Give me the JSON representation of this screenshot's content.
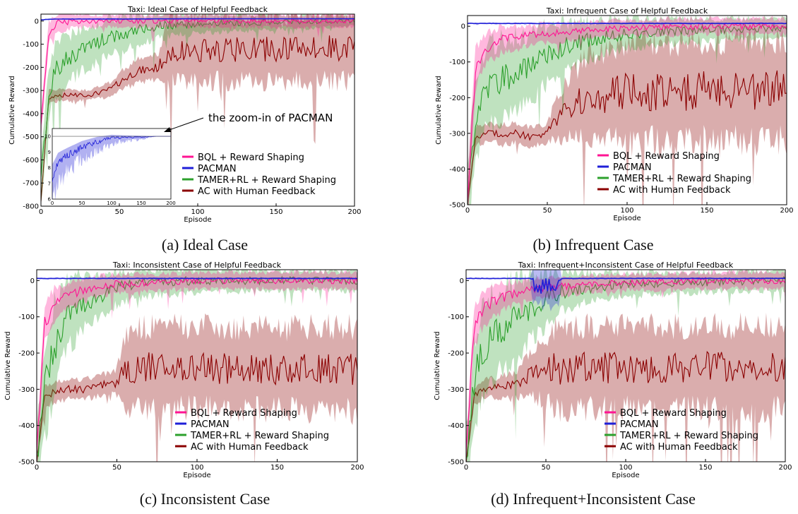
{
  "legend_entries": [
    "BQL + Reward Shaping",
    "PACMAN",
    "TAMER+RL + Reward Shaping",
    "AC with Human Feedback"
  ],
  "colors": {
    "bql": "#ff1493",
    "pacman": "#1f1fd8",
    "tamer": "#2ca02c",
    "ac": "#8b0000"
  },
  "captions": [
    "(a) Ideal Case",
    "(b) Infrequent Case",
    "(c) Inconsistent Case",
    "(d) Infrequent+Inconsistent Case"
  ],
  "annotation": "the zoom-in of PACMAN",
  "chart_data": [
    {
      "type": "line",
      "title": "Taxi: Ideal Case of Helpful Feedback",
      "xlabel": "Episode",
      "ylabel": "Cumulative Reward",
      "xlim": [
        0,
        200
      ],
      "ylim": [
        -800,
        30
      ],
      "xticks": [
        "0",
        "50",
        "100",
        "150",
        "200"
      ],
      "yticks": [
        "0",
        "-100",
        "-200",
        "-300",
        "-400",
        "-500",
        "-600",
        "-700",
        "-800"
      ],
      "legend_position": "lower-right",
      "series": [
        {
          "name": "BQL + Reward Shaping",
          "x": [
            0,
            5,
            10,
            20,
            30,
            40,
            50,
            75,
            100,
            150,
            200
          ],
          "y": [
            -450,
            -50,
            -10,
            0,
            0,
            0,
            0,
            0,
            0,
            0,
            0
          ],
          "band": [
            60,
            50,
            45,
            35,
            30,
            30,
            30,
            30,
            30,
            30,
            30
          ]
        },
        {
          "name": "PACMAN",
          "x": [
            0,
            5,
            10,
            50,
            100,
            150,
            200
          ],
          "y": [
            5,
            8,
            9,
            9,
            10,
            10,
            10
          ],
          "band": [
            3,
            2,
            1,
            1,
            0,
            0,
            0
          ]
        },
        {
          "name": "TAMER+RL + Reward Shaping",
          "x": [
            0,
            5,
            10,
            20,
            30,
            40,
            50,
            60,
            75,
            100,
            150,
            200
          ],
          "y": [
            -700,
            -300,
            -200,
            -150,
            -110,
            -80,
            -60,
            -40,
            -20,
            -10,
            -5,
            0
          ],
          "band": [
            100,
            120,
            120,
            110,
            100,
            90,
            80,
            70,
            60,
            45,
            35,
            25
          ]
        },
        {
          "name": "AC with Human Feedback",
          "x": [
            0,
            5,
            10,
            20,
            30,
            40,
            45,
            50,
            60,
            75,
            80,
            100,
            150,
            200
          ],
          "y": [
            -780,
            -330,
            -320,
            -320,
            -320,
            -305,
            -290,
            -265,
            -220,
            -200,
            -140,
            -125,
            -120,
            -115
          ],
          "band": [
            20,
            30,
            30,
            25,
            25,
            30,
            30,
            45,
            55,
            60,
            145,
            150,
            155,
            160
          ]
        }
      ],
      "inset": {
        "series": "PACMAN",
        "xlim": [
          0,
          200
        ],
        "ylim": [
          6,
          10.5
        ],
        "xticks": [
          "0",
          "50",
          "100",
          "150",
          "200"
        ],
        "yticks": [
          "10",
          "9",
          "8",
          "7",
          "6"
        ],
        "x": [
          0,
          10,
          25,
          50,
          75,
          100,
          125,
          150,
          175,
          200
        ],
        "y": [
          7.8,
          8.6,
          9.0,
          9.5,
          9.8,
          10,
          10,
          10,
          10,
          10
        ],
        "band": [
          2,
          1.8,
          1.3,
          1,
          0.8,
          0.5,
          0.3,
          0.2,
          0,
          0
        ]
      }
    },
    {
      "type": "line",
      "title": "Taxi: Infrequent Case of Helpful Feedback",
      "xlabel": "Episode",
      "ylabel": "Cumulative Reward",
      "xlim": [
        0,
        200
      ],
      "ylim": [
        -500,
        30
      ],
      "xticks": [
        "0",
        "50",
        "100",
        "150",
        "200"
      ],
      "yticks": [
        "0",
        "-100",
        "-200",
        "-300",
        "-400",
        "-500"
      ],
      "legend_position": "lower-right",
      "series": [
        {
          "name": "BQL + Reward Shaping",
          "x": [
            0,
            5,
            10,
            20,
            30,
            40,
            50,
            75,
            100,
            150,
            200
          ],
          "y": [
            -480,
            -120,
            -70,
            -40,
            -30,
            -25,
            -20,
            -10,
            -5,
            0,
            0
          ],
          "band": [
            60,
            60,
            50,
            40,
            35,
            30,
            30,
            25,
            25,
            25,
            25
          ]
        },
        {
          "name": "PACMAN",
          "x": [
            0,
            50,
            100,
            150,
            200
          ],
          "y": [
            8,
            8,
            8,
            8,
            8
          ],
          "band": [
            2,
            2,
            2,
            2,
            2
          ]
        },
        {
          "name": "TAMER+RL + Reward Shaping",
          "x": [
            0,
            5,
            10,
            20,
            30,
            40,
            50,
            60,
            75,
            100,
            150,
            200
          ],
          "y": [
            -500,
            -260,
            -190,
            -150,
            -130,
            -110,
            -80,
            -60,
            -40,
            -20,
            -10,
            -5
          ],
          "band": [
            100,
            130,
            130,
            120,
            110,
            100,
            90,
            80,
            60,
            45,
            35,
            30
          ]
        },
        {
          "name": "AC with Human Feedback",
          "x": [
            0,
            5,
            10,
            20,
            30,
            40,
            50,
            55,
            60,
            75,
            100,
            150,
            200
          ],
          "y": [
            -500,
            -310,
            -300,
            -300,
            -300,
            -310,
            -300,
            -260,
            -240,
            -200,
            -185,
            -180,
            -180
          ],
          "band": [
            20,
            30,
            30,
            30,
            30,
            30,
            30,
            60,
            80,
            130,
            155,
            160,
            160
          ]
        }
      ]
    },
    {
      "type": "line",
      "title": "Taxi: Inconsistent Case of Helpful Feedback",
      "xlabel": "Episode",
      "ylabel": "Cumulative Reward",
      "xlim": [
        0,
        200
      ],
      "ylim": [
        -500,
        30
      ],
      "xticks": [
        "0",
        "50",
        "100",
        "150",
        "200"
      ],
      "yticks": [
        "0",
        "-100",
        "-200",
        "-300",
        "-400",
        "-500"
      ],
      "legend_position": "lower-right",
      "series": [
        {
          "name": "BQL + Reward Shaping",
          "x": [
            0,
            5,
            10,
            20,
            30,
            40,
            50,
            75,
            100,
            150,
            200
          ],
          "y": [
            -480,
            -120,
            -70,
            -40,
            -25,
            -15,
            -10,
            -5,
            0,
            0,
            0
          ],
          "band": [
            60,
            60,
            50,
            40,
            35,
            30,
            30,
            25,
            25,
            25,
            25
          ]
        },
        {
          "name": "PACMAN",
          "x": [
            0,
            50,
            100,
            150,
            200
          ],
          "y": [
            6,
            6,
            6,
            6,
            6
          ],
          "band": [
            2,
            2,
            2,
            2,
            2
          ]
        },
        {
          "name": "TAMER+RL + Reward Shaping",
          "x": [
            0,
            5,
            10,
            15,
            20,
            30,
            40,
            50,
            60,
            75,
            100,
            150,
            200
          ],
          "y": [
            -500,
            -300,
            -200,
            -130,
            -90,
            -60,
            -40,
            -20,
            -10,
            -5,
            0,
            0,
            0
          ],
          "band": [
            100,
            140,
            140,
            120,
            100,
            80,
            60,
            50,
            45,
            40,
            35,
            30,
            30
          ]
        },
        {
          "name": "AC with Human Feedback",
          "x": [
            0,
            5,
            10,
            20,
            30,
            40,
            50,
            55,
            60,
            75,
            100,
            150,
            200
          ],
          "y": [
            -500,
            -320,
            -310,
            -300,
            -300,
            -290,
            -280,
            -250,
            -240,
            -240,
            -240,
            -245,
            -245
          ],
          "band": [
            20,
            30,
            30,
            30,
            30,
            30,
            40,
            100,
            125,
            125,
            125,
            125,
            130
          ]
        }
      ]
    },
    {
      "type": "line",
      "title": "Taxi: Infrequent+Inconsistent Case of Helpful Feedback",
      "xlabel": "Episode",
      "ylabel": "Cumulative Reward",
      "xlim": [
        0,
        200
      ],
      "ylim": [
        -500,
        30
      ],
      "xticks": [
        "0",
        "50",
        "100",
        "150",
        "200"
      ],
      "yticks": [
        "0",
        "-100",
        "-200",
        "-300",
        "-400",
        "-500"
      ],
      "legend_position": "lower-right",
      "series": [
        {
          "name": "BQL + Reward Shaping",
          "x": [
            0,
            5,
            10,
            20,
            30,
            40,
            50,
            75,
            100,
            150,
            200
          ],
          "y": [
            -480,
            -130,
            -80,
            -50,
            -35,
            -25,
            -20,
            -10,
            -5,
            0,
            0
          ],
          "band": [
            60,
            60,
            55,
            45,
            35,
            30,
            30,
            25,
            25,
            25,
            25
          ]
        },
        {
          "name": "PACMAN",
          "x": [
            0,
            40,
            42,
            58,
            60,
            100,
            150,
            200
          ],
          "y": [
            6,
            6,
            -15,
            -15,
            6,
            6,
            6,
            6
          ],
          "band": [
            2,
            2,
            60,
            60,
            2,
            2,
            2,
            2
          ]
        },
        {
          "name": "TAMER+RL + Reward Shaping",
          "x": [
            0,
            5,
            10,
            20,
            30,
            40,
            50,
            60,
            75,
            100,
            150,
            200
          ],
          "y": [
            -500,
            -280,
            -200,
            -140,
            -110,
            -80,
            -50,
            -30,
            -20,
            -10,
            -5,
            0
          ],
          "band": [
            100,
            130,
            140,
            130,
            120,
            100,
            80,
            60,
            45,
            35,
            30,
            30
          ]
        },
        {
          "name": "AC with Human Feedback",
          "x": [
            0,
            5,
            10,
            20,
            30,
            40,
            50,
            55,
            60,
            75,
            100,
            150,
            200
          ],
          "y": [
            -500,
            -320,
            -300,
            -295,
            -290,
            -260,
            -250,
            -240,
            -250,
            -240,
            -240,
            -240,
            -240
          ],
          "band": [
            20,
            30,
            30,
            30,
            40,
            60,
            100,
            120,
            125,
            125,
            125,
            125,
            130
          ]
        }
      ]
    }
  ]
}
